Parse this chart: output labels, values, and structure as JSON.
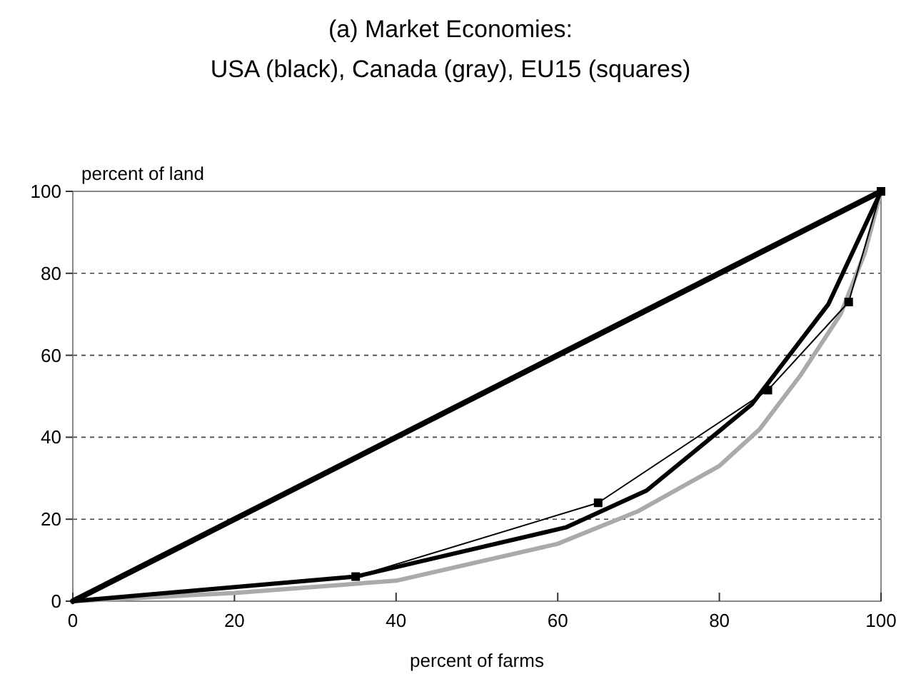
{
  "chart_data": {
    "type": "line",
    "title": "(a) Market Economies:",
    "subtitle": "USA (black), Canada (gray), EU15 (squares)",
    "xlabel": "percent of farms",
    "ylabel": "percent of land",
    "xlim": [
      0,
      100
    ],
    "ylim": [
      0,
      100
    ],
    "xticks": [
      0,
      20,
      40,
      60,
      80,
      100
    ],
    "yticks": [
      0,
      20,
      40,
      60,
      80,
      100
    ],
    "grid": "y",
    "series": [
      {
        "color": "#000000",
        "x": [
          0,
          100
        ],
        "values": [
          0,
          100
        ]
      },
      {
        "color": "#aaaaaa",
        "x": [
          0,
          20,
          40,
          60,
          70,
          80,
          85,
          90,
          95,
          98,
          100
        ],
        "values": [
          0,
          2,
          5,
          14,
          22,
          33,
          42,
          55,
          70,
          85,
          100
        ]
      },
      {
        "color": "#000000",
        "x": [
          0,
          35,
          61,
          71,
          84,
          93.5,
          100
        ],
        "values": [
          0,
          6,
          18,
          27,
          48,
          72.5,
          100
        ]
      },
      {
        "color": "#000000",
        "x": [
          0,
          35,
          65,
          86,
          96,
          100
        ],
        "values": [
          0,
          6,
          24,
          51.5,
          73,
          100
        ],
        "marker": "square"
      }
    ]
  }
}
